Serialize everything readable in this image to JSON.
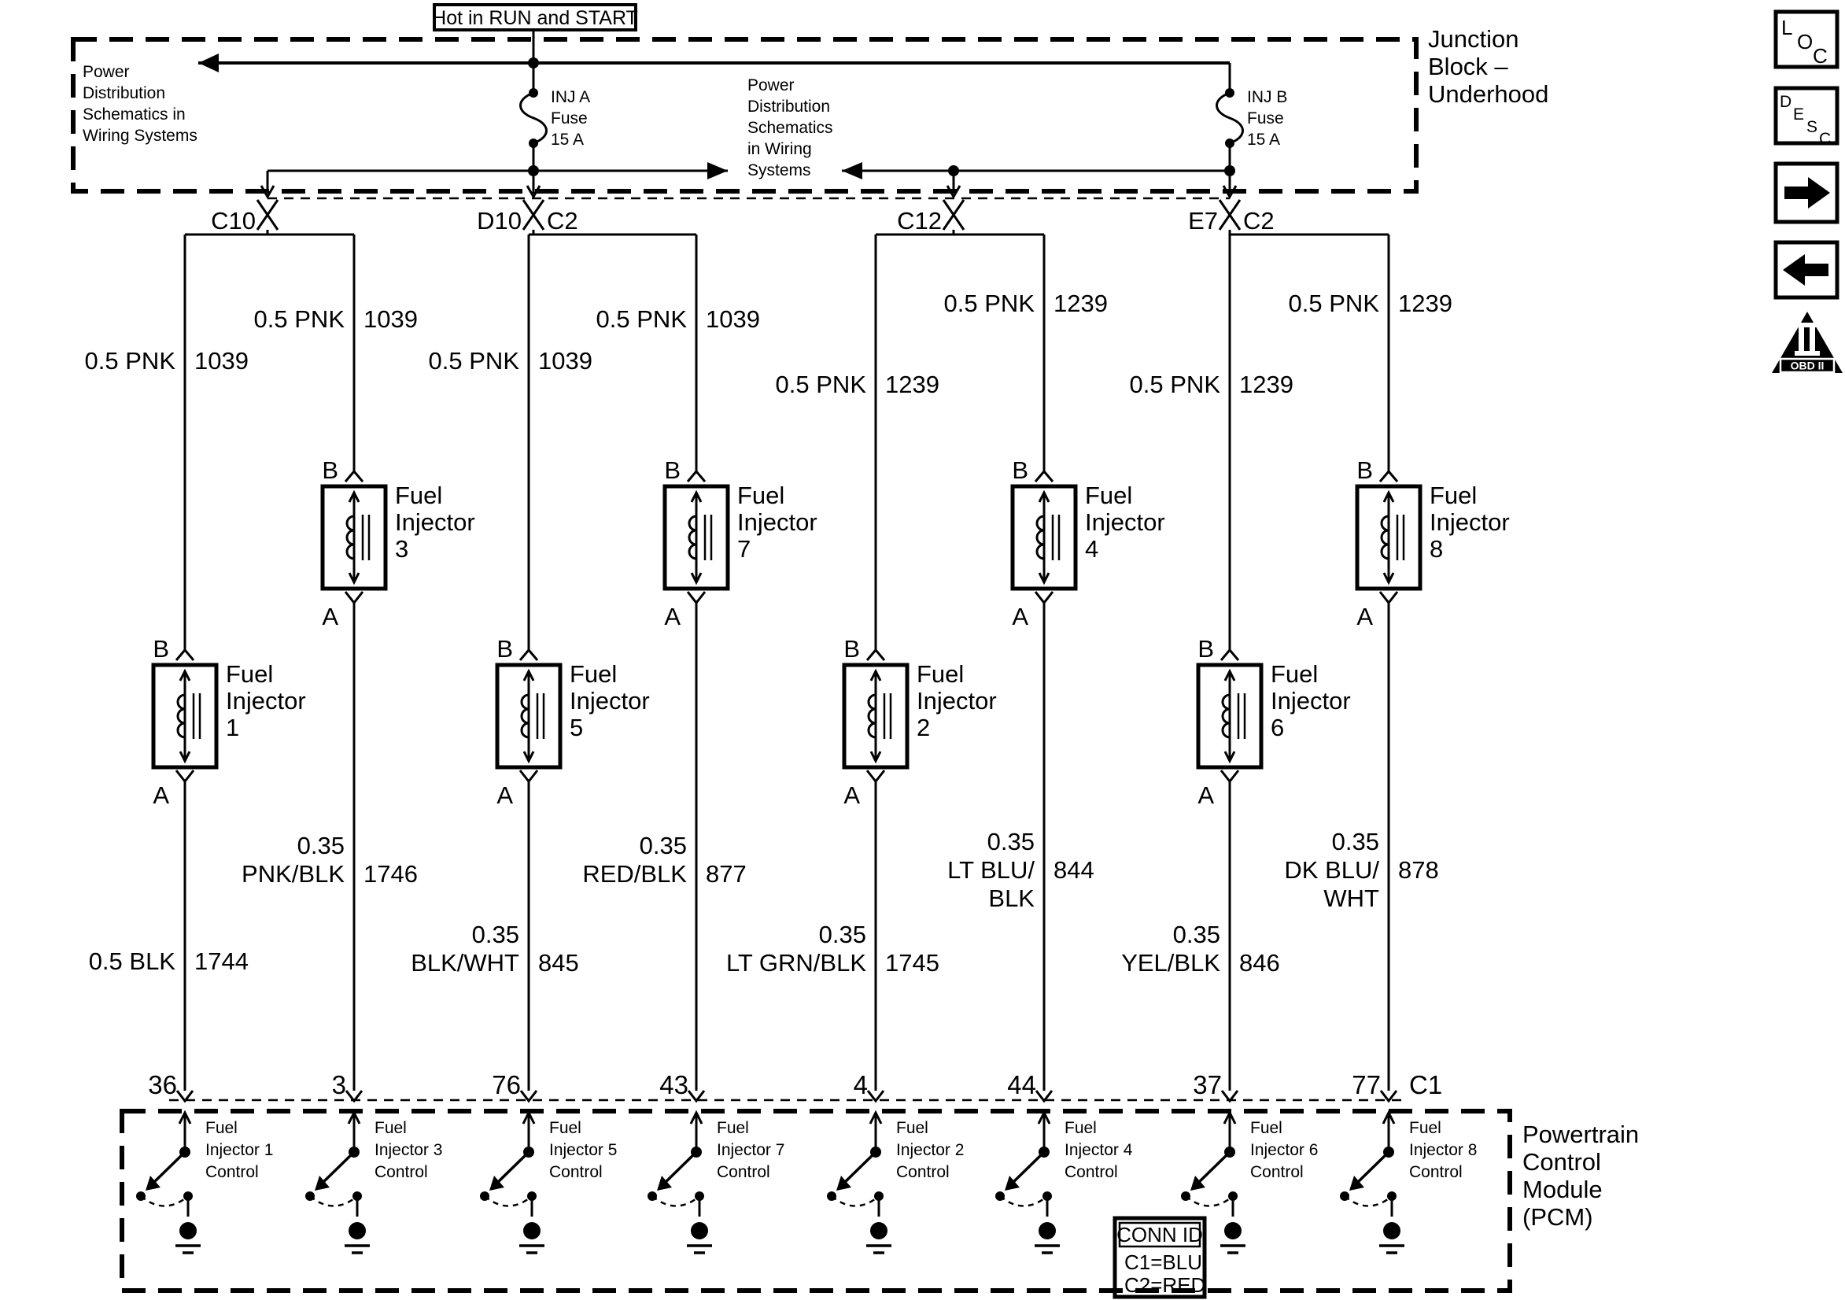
{
  "header": {
    "hot_label": "Hot in RUN and START"
  },
  "junction_block": {
    "title_lines": [
      "Junction",
      "Block –",
      "Underhood"
    ],
    "power_dist_left": [
      "Power",
      "Distribution",
      "Schematics in",
      "Wiring Systems"
    ],
    "power_dist_mid": [
      "Power",
      "Distribution",
      "Schematics",
      "in Wiring",
      "Systems"
    ],
    "fuse_a_lines": [
      "INJ A",
      "Fuse",
      "15 A"
    ],
    "fuse_b_lines": [
      "INJ B",
      "Fuse",
      "15 A"
    ]
  },
  "connectors": [
    {
      "label": "C10",
      "c2_label": ""
    },
    {
      "label": "D10",
      "c2_label": "C2"
    },
    {
      "label": "C12",
      "c2_label": ""
    },
    {
      "label": "E7",
      "c2_label": "C2"
    }
  ],
  "columns": [
    {
      "pin": "36",
      "terminal_top": "B",
      "terminal_bottom": "A",
      "injector_lines": [
        "Fuel",
        "Injector",
        "1"
      ],
      "top_gauge": "0.5 PNK",
      "top_circuit": "1039",
      "bottom_lines": [
        "0.5 BLK"
      ],
      "bottom_circuit": "1744",
      "pcm_lines": [
        "Fuel",
        "Injector 1",
        "Control"
      ]
    },
    {
      "pin": "3",
      "terminal_top": "B",
      "terminal_bottom": "A",
      "injector_lines": [
        "Fuel",
        "Injector",
        "3"
      ],
      "top_gauge": "0.5 PNK",
      "top_circuit": "1039",
      "bottom_lines": [
        "0.35",
        "PNK/BLK"
      ],
      "bottom_circuit": "1746",
      "pcm_lines": [
        "Fuel",
        "Injector 3",
        "Control"
      ]
    },
    {
      "pin": "76",
      "terminal_top": "B",
      "terminal_bottom": "A",
      "injector_lines": [
        "Fuel",
        "Injector",
        "5"
      ],
      "top_gauge": "0.5 PNK",
      "top_circuit": "1039",
      "bottom_lines": [
        "0.35",
        "BLK/WHT"
      ],
      "bottom_circuit": "845",
      "pcm_lines": [
        "Fuel",
        "Injector 5",
        "Control"
      ]
    },
    {
      "pin": "43",
      "terminal_top": "B",
      "terminal_bottom": "A",
      "injector_lines": [
        "Fuel",
        "Injector",
        "7"
      ],
      "top_gauge": "0.5 PNK",
      "top_circuit": "1039",
      "bottom_lines": [
        "0.35",
        "RED/BLK"
      ],
      "bottom_circuit": "877",
      "pcm_lines": [
        "Fuel",
        "Injector 7",
        "Control"
      ]
    },
    {
      "pin": "4",
      "terminal_top": "B",
      "terminal_bottom": "A",
      "injector_lines": [
        "Fuel",
        "Injector",
        "2"
      ],
      "top_gauge": "0.5 PNK",
      "top_circuit": "1239",
      "bottom_lines": [
        "0.35",
        "LT GRN/BLK"
      ],
      "bottom_circuit": "1745",
      "pcm_lines": [
        "Fuel",
        "Injector 2",
        "Control"
      ]
    },
    {
      "pin": "44",
      "terminal_top": "B",
      "terminal_bottom": "A",
      "injector_lines": [
        "Fuel",
        "Injector",
        "4"
      ],
      "top_gauge": "0.5 PNK",
      "top_circuit": "1239",
      "bottom_lines": [
        "0.35",
        "LT BLU/",
        "BLK"
      ],
      "bottom_circuit": "844",
      "pcm_lines": [
        "Fuel",
        "Injector 4",
        "Control"
      ]
    },
    {
      "pin": "37",
      "terminal_top": "B",
      "terminal_bottom": "A",
      "injector_lines": [
        "Fuel",
        "Injector",
        "6"
      ],
      "top_gauge": "0.5 PNK",
      "top_circuit": "1239",
      "bottom_lines": [
        "0.35",
        "YEL/BLK"
      ],
      "bottom_circuit": "846",
      "pcm_lines": [
        "Fuel",
        "Injector 6",
        "Control"
      ]
    },
    {
      "pin": "77",
      "terminal_top": "B",
      "terminal_bottom": "A",
      "injector_lines": [
        "Fuel",
        "Injector",
        "8"
      ],
      "top_gauge": "0.5 PNK",
      "top_circuit": "1239",
      "bottom_lines": [
        "0.35",
        "DK BLU/",
        "WHT"
      ],
      "bottom_circuit": "878",
      "pcm_lines": [
        "Fuel",
        "Injector 8",
        "Control"
      ]
    }
  ],
  "pcm": {
    "title_lines": [
      "Powertrain",
      "Control",
      "Module",
      "(PCM)"
    ],
    "conn_id_header": "CONN ID",
    "conn_id_rows": [
      "C1=BLU",
      "C2=RED"
    ],
    "connector_label": "C1"
  },
  "icons": {
    "loc_letters": [
      "L",
      "O",
      "C"
    ],
    "desc_letters": [
      "D",
      "E",
      "S",
      "C"
    ],
    "obd_label": "OBD II"
  },
  "colors": {
    "line": "#000000",
    "background": "#ffffff"
  }
}
